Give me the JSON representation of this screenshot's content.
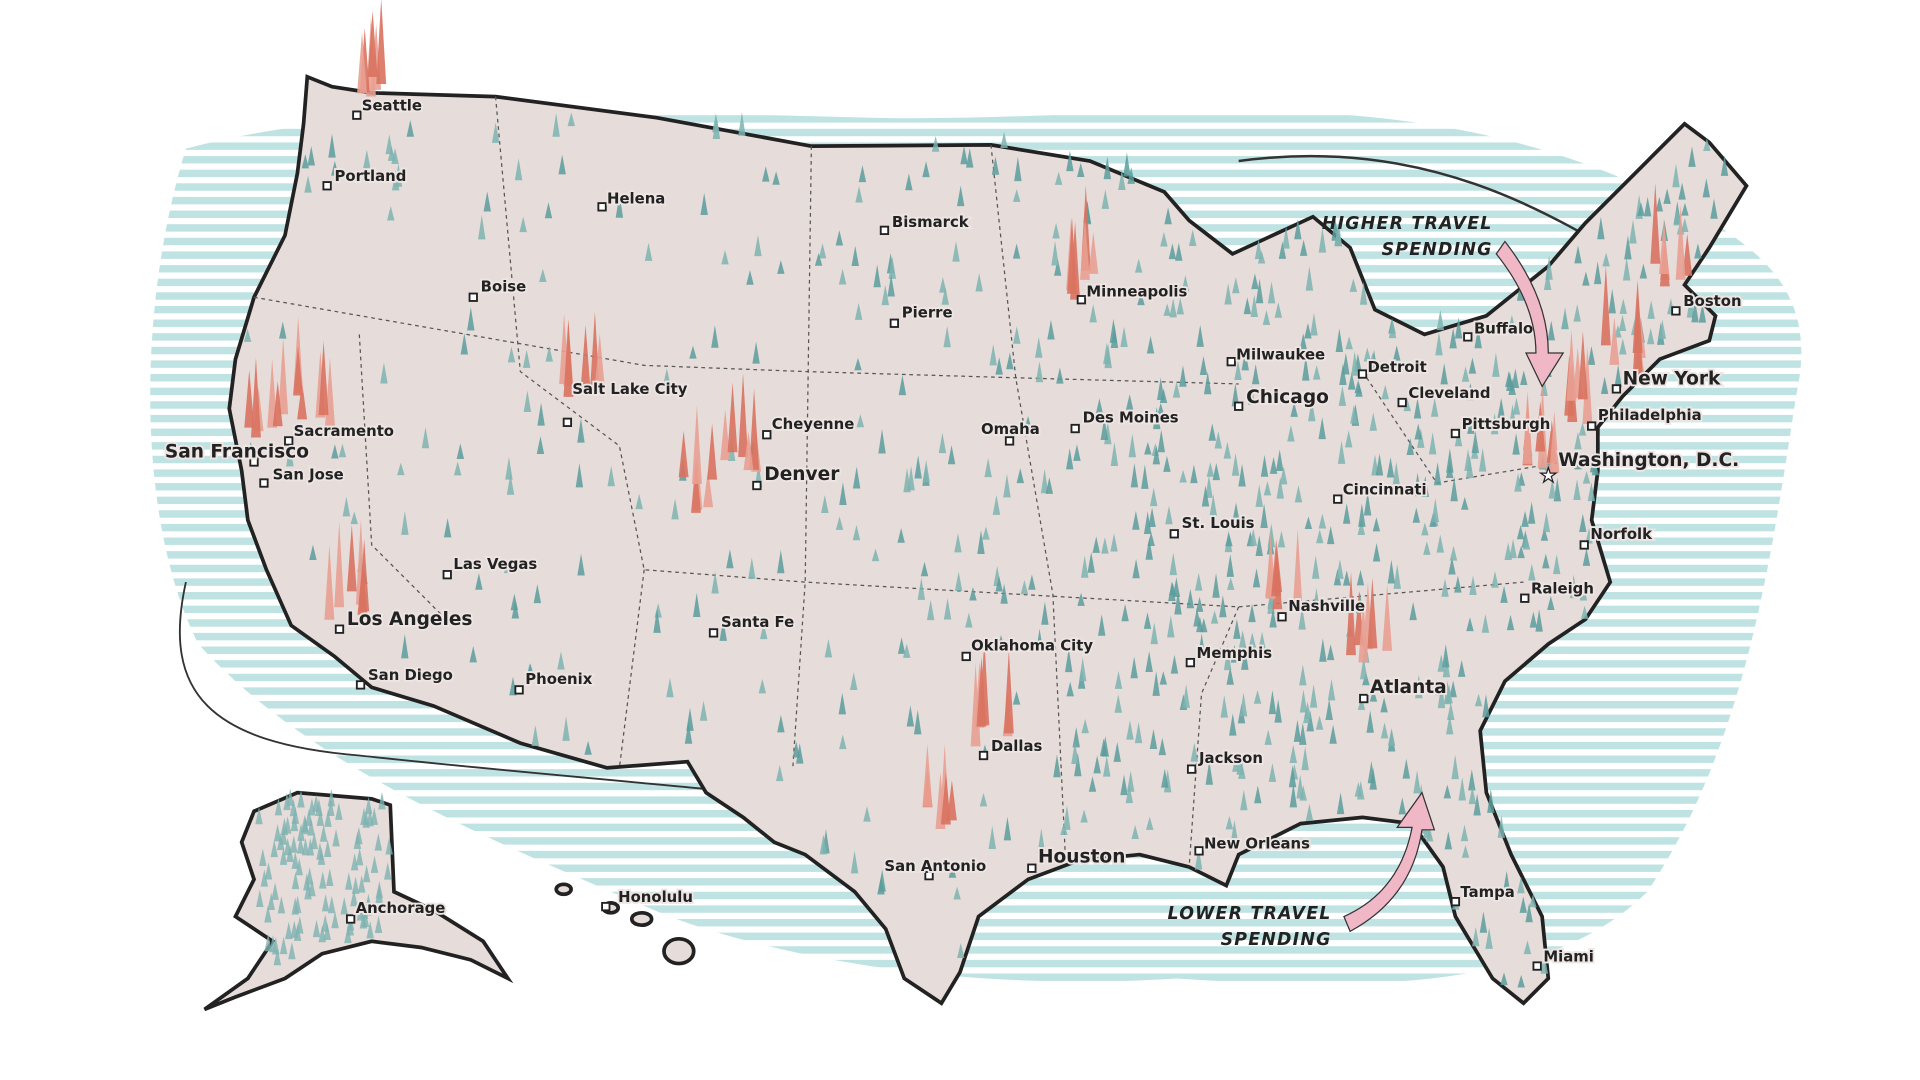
{
  "cities": [
    "Seattle",
    "Portland",
    "Helena",
    "Bismarck",
    "Boise",
    "Minneapolis",
    "Pierre",
    "Milwaukee",
    "Buffalo",
    "Boston",
    "Detroit",
    "Salt Lake City",
    "Chicago",
    "Cleveland",
    "New York",
    "Sacramento",
    "Cheyenne",
    "Omaha",
    "Des Moines",
    "Pittsburgh",
    "Philadelphia",
    "San Francisco",
    "San Jose",
    "Denver",
    "Washington, D.C.",
    "Cincinnati",
    "St. Louis",
    "Norfolk",
    "Las Vegas",
    "Nashville",
    "Raleigh",
    "Los Angeles",
    "Santa Fe",
    "Memphis",
    "Oklahoma City",
    "San Diego",
    "Phoenix",
    "Atlanta",
    "Dallas",
    "Jackson",
    "New Orleans",
    "San Antonio",
    "Houston",
    "Anchorage",
    "Honolulu",
    "Tampa",
    "Miami"
  ],
  "annotations": [
    {
      "lines": [
        "HIGHER TRAVEL",
        "SPENDING"
      ]
    },
    {
      "lines": [
        "LOWER TRAVEL",
        "SPENDING"
      ]
    }
  ]
}
